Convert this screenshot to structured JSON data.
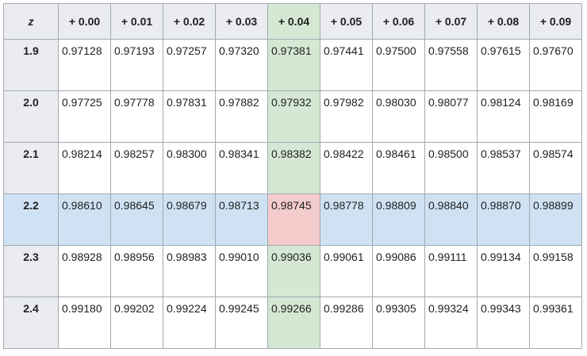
{
  "table": {
    "z_header": "z",
    "columns": [
      "+ 0.00",
      "+ 0.01",
      "+ 0.02",
      "+ 0.03",
      "+ 0.04",
      "+ 0.05",
      "+ 0.06",
      "+ 0.07",
      "+ 0.08",
      "+ 0.09"
    ],
    "rows": [
      {
        "z": "1.9",
        "values": [
          "0.97128",
          "0.97193",
          "0.97257",
          "0.97320",
          "0.97381",
          "0.97441",
          "0.97500",
          "0.97558",
          "0.97615",
          "0.97670"
        ]
      },
      {
        "z": "2.0",
        "values": [
          "0.97725",
          "0.97778",
          "0.97831",
          "0.97882",
          "0.97932",
          "0.97982",
          "0.98030",
          "0.98077",
          "0.98124",
          "0.98169"
        ]
      },
      {
        "z": "2.1",
        "values": [
          "0.98214",
          "0.98257",
          "0.98300",
          "0.98341",
          "0.98382",
          "0.98422",
          "0.98461",
          "0.98500",
          "0.98537",
          "0.98574"
        ]
      },
      {
        "z": "2.2",
        "values": [
          "0.98610",
          "0.98645",
          "0.98679",
          "0.98713",
          "0.98745",
          "0.98778",
          "0.98809",
          "0.98840",
          "0.98870",
          "0.98899"
        ]
      },
      {
        "z": "2.3",
        "values": [
          "0.98928",
          "0.98956",
          "0.98983",
          "0.99010",
          "0.99036",
          "0.99061",
          "0.99086",
          "0.99111",
          "0.99134",
          "0.99158"
        ]
      },
      {
        "z": "2.4",
        "values": [
          "0.99180",
          "0.99202",
          "0.99224",
          "0.99245",
          "0.99266",
          "0.99286",
          "0.99305",
          "0.99324",
          "0.99343",
          "0.99361"
        ]
      }
    ],
    "highlight": {
      "column_index": 4,
      "row_index": 3,
      "column_color": "#d5e8d4",
      "row_color": "#cfe2f3",
      "intersection_color": "#f4cccc"
    }
  }
}
